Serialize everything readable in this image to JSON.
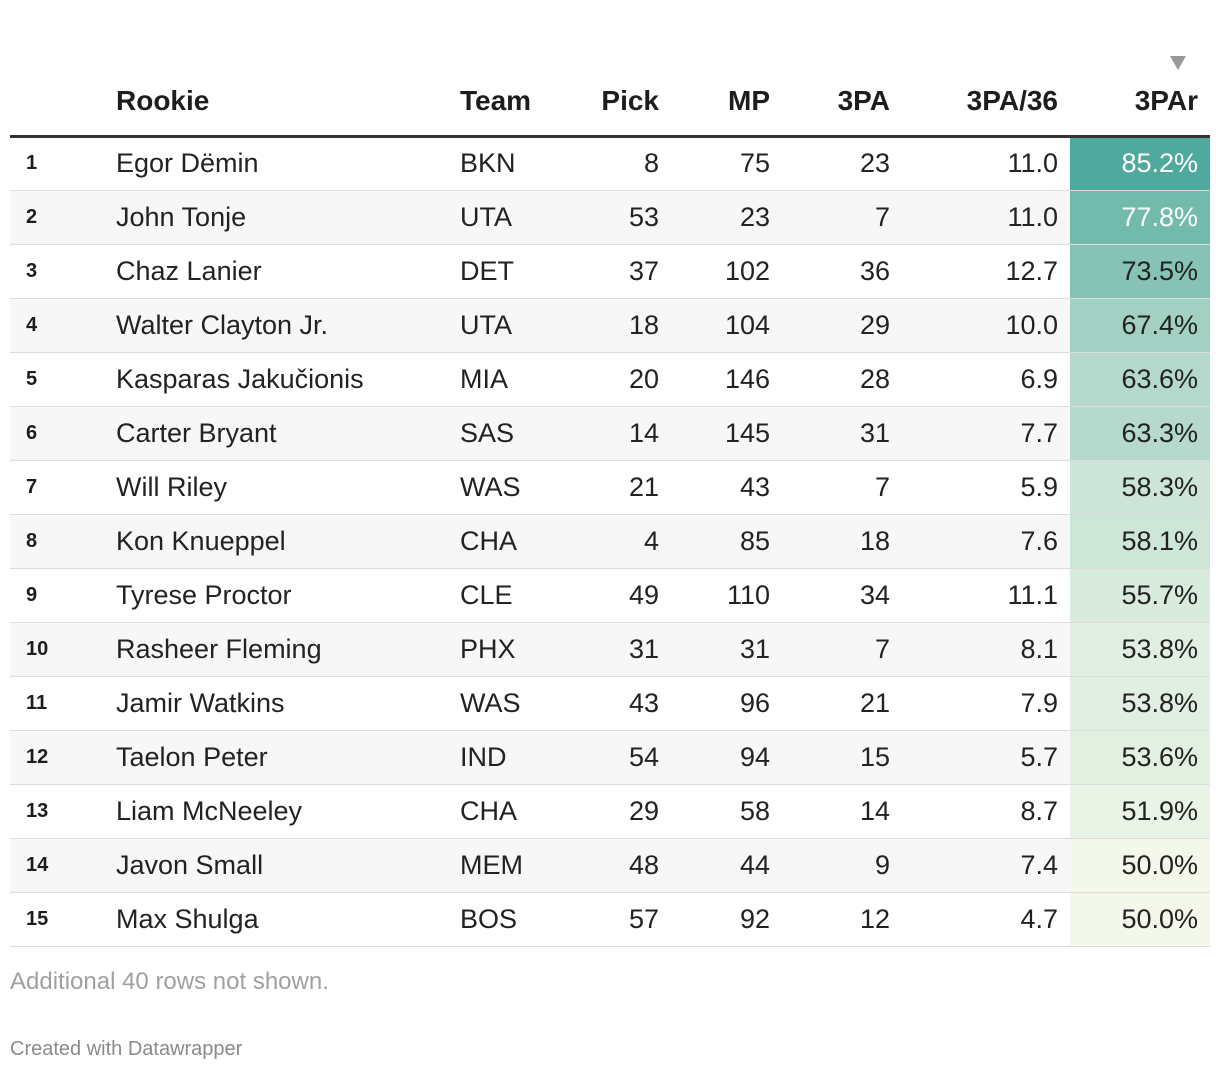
{
  "chart_data": {
    "type": "table",
    "columns": [
      "",
      "Rookie",
      "Team",
      "Pick",
      "MP",
      "3PA",
      "3PA/36",
      "3PAr"
    ],
    "sorted_by": "3PAr",
    "sort_direction": "descending",
    "heatmap_column": "3PAr",
    "heatmap_colors": [
      "#f3f8ea",
      "#4fa99c"
    ],
    "rows": [
      {
        "rank": "1",
        "rookie": "Egor Dëmin",
        "team": "BKN",
        "pick": 8,
        "mp": 75,
        "tpa": 23,
        "tpa36": "11.0",
        "tpar": "85.2%",
        "tpar_value": 85.2
      },
      {
        "rank": "2",
        "rookie": "John Tonje",
        "team": "UTA",
        "pick": 53,
        "mp": 23,
        "tpa": 7,
        "tpa36": "11.0",
        "tpar": "77.8%",
        "tpar_value": 77.8
      },
      {
        "rank": "3",
        "rookie": "Chaz Lanier",
        "team": "DET",
        "pick": 37,
        "mp": 102,
        "tpa": 36,
        "tpa36": "12.7",
        "tpar": "73.5%",
        "tpar_value": 73.5
      },
      {
        "rank": "4",
        "rookie": "Walter Clayton Jr.",
        "team": "UTA",
        "pick": 18,
        "mp": 104,
        "tpa": 29,
        "tpa36": "10.0",
        "tpar": "67.4%",
        "tpar_value": 67.4
      },
      {
        "rank": "5",
        "rookie": "Kasparas Jakučionis",
        "team": "MIA",
        "pick": 20,
        "mp": 146,
        "tpa": 28,
        "tpa36": "6.9",
        "tpar": "63.6%",
        "tpar_value": 63.6
      },
      {
        "rank": "6",
        "rookie": "Carter Bryant",
        "team": "SAS",
        "pick": 14,
        "mp": 145,
        "tpa": 31,
        "tpa36": "7.7",
        "tpar": "63.3%",
        "tpar_value": 63.3
      },
      {
        "rank": "7",
        "rookie": "Will Riley",
        "team": "WAS",
        "pick": 21,
        "mp": 43,
        "tpa": 7,
        "tpa36": "5.9",
        "tpar": "58.3%",
        "tpar_value": 58.3
      },
      {
        "rank": "8",
        "rookie": "Kon Knueppel",
        "team": "CHA",
        "pick": 4,
        "mp": 85,
        "tpa": 18,
        "tpa36": "7.6",
        "tpar": "58.1%",
        "tpar_value": 58.1
      },
      {
        "rank": "9",
        "rookie": "Tyrese Proctor",
        "team": "CLE",
        "pick": 49,
        "mp": 110,
        "tpa": 34,
        "tpa36": "11.1",
        "tpar": "55.7%",
        "tpar_value": 55.7
      },
      {
        "rank": "10",
        "rookie": "Rasheer Fleming",
        "team": "PHX",
        "pick": 31,
        "mp": 31,
        "tpa": 7,
        "tpa36": "8.1",
        "tpar": "53.8%",
        "tpar_value": 53.8
      },
      {
        "rank": "11",
        "rookie": "Jamir Watkins",
        "team": "WAS",
        "pick": 43,
        "mp": 96,
        "tpa": 21,
        "tpa36": "7.9",
        "tpar": "53.8%",
        "tpar_value": 53.8
      },
      {
        "rank": "12",
        "rookie": "Taelon Peter",
        "team": "IND",
        "pick": 54,
        "mp": 94,
        "tpa": 15,
        "tpa36": "5.7",
        "tpar": "53.6%",
        "tpar_value": 53.6
      },
      {
        "rank": "13",
        "rookie": "Liam McNeeley",
        "team": "CHA",
        "pick": 29,
        "mp": 58,
        "tpa": 14,
        "tpa36": "8.7",
        "tpar": "51.9%",
        "tpar_value": 51.9
      },
      {
        "rank": "14",
        "rookie": "Javon Small",
        "team": "MEM",
        "pick": 48,
        "mp": 44,
        "tpa": 9,
        "tpa36": "7.4",
        "tpar": "50.0%",
        "tpar_value": 50.0
      },
      {
        "rank": "15",
        "rookie": "Max Shulga",
        "team": "BOS",
        "pick": 57,
        "mp": 92,
        "tpa": 12,
        "tpa36": "4.7",
        "tpar": "50.0%",
        "tpar_value": 50.0
      }
    ]
  },
  "footer": {
    "notes": "Additional 40 rows not shown.",
    "credit": "Created with Datawrapper"
  }
}
